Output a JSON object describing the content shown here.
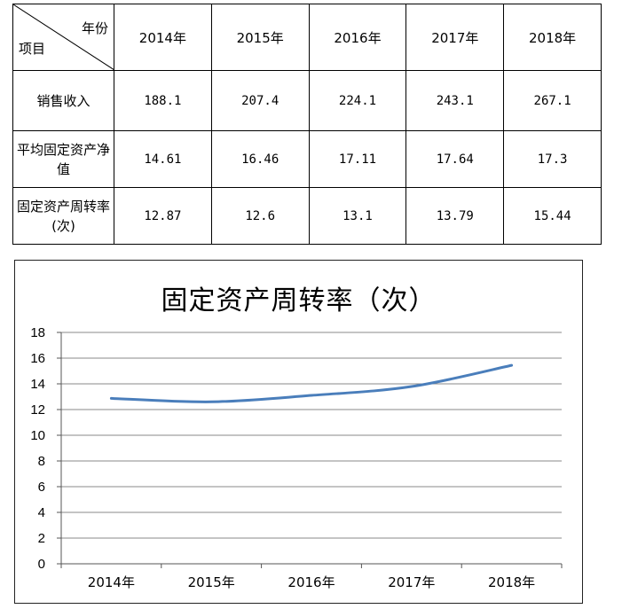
{
  "table": {
    "header_year": "年份",
    "header_item": "项目",
    "years": [
      "2014年",
      "2015年",
      "2016年",
      "2017年",
      "2018年"
    ],
    "rows": [
      {
        "label": "销售收入",
        "values": [
          "188.1",
          "207.4",
          "224.1",
          "243.1",
          "267.1"
        ]
      },
      {
        "label": "平均固定资产净值",
        "values": [
          "14.61",
          "16.46",
          "17.11",
          "17.64",
          "17.3"
        ]
      },
      {
        "label": "固定资产周转率(次)",
        "values": [
          "12.87",
          "12.6",
          "13.1",
          "13.79",
          "15.44"
        ]
      }
    ]
  },
  "chart_data": {
    "type": "line",
    "title": "固定资产周转率（次）",
    "categories": [
      "2014年",
      "2015年",
      "2016年",
      "2017年",
      "2018年"
    ],
    "series": [
      {
        "values": [
          12.87,
          12.6,
          13.1,
          13.79,
          15.44
        ],
        "color": "#4a7ebb"
      }
    ],
    "ylim": [
      0,
      18
    ],
    "yticks": [
      0,
      2,
      4,
      6,
      8,
      10,
      12,
      14,
      16,
      18
    ],
    "grid": true,
    "legend": "none"
  }
}
